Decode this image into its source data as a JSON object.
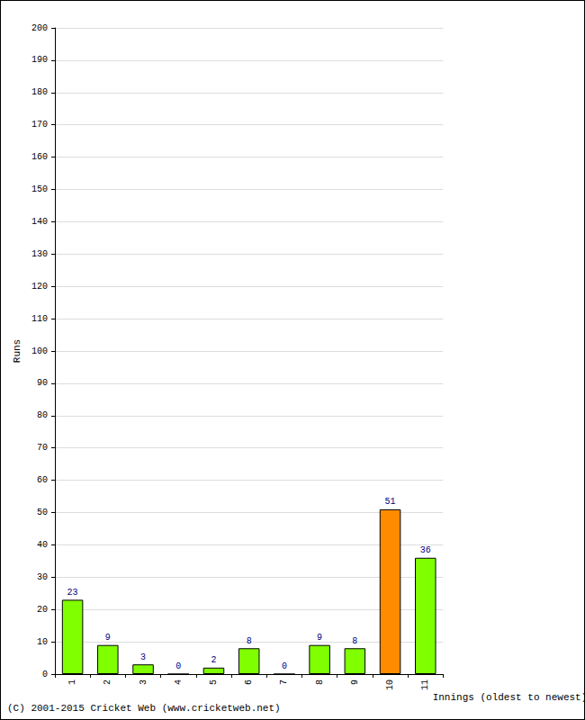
{
  "chart_data": {
    "type": "bar",
    "categories": [
      "1",
      "2",
      "3",
      "4",
      "5",
      "6",
      "7",
      "8",
      "9",
      "10",
      "11"
    ],
    "values": [
      23,
      9,
      3,
      0,
      2,
      8,
      0,
      9,
      8,
      51,
      36
    ],
    "colors": [
      "#80ff00",
      "#80ff00",
      "#80ff00",
      "#80ff00",
      "#80ff00",
      "#80ff00",
      "#80ff00",
      "#80ff00",
      "#80ff00",
      "#ff8c00",
      "#80ff00"
    ],
    "xlabel": "Innings (oldest to newest)",
    "ylabel": "Runs",
    "ylim": [
      0,
      200
    ],
    "yticks": [
      0,
      10,
      20,
      30,
      40,
      50,
      60,
      70,
      80,
      90,
      100,
      110,
      120,
      130,
      140,
      150,
      160,
      170,
      180,
      190,
      200
    ],
    "grid": true,
    "data_labels": true,
    "annotations": [
      "(C) 2001-2015 Cricket Web (www.cricketweb.net)"
    ]
  }
}
